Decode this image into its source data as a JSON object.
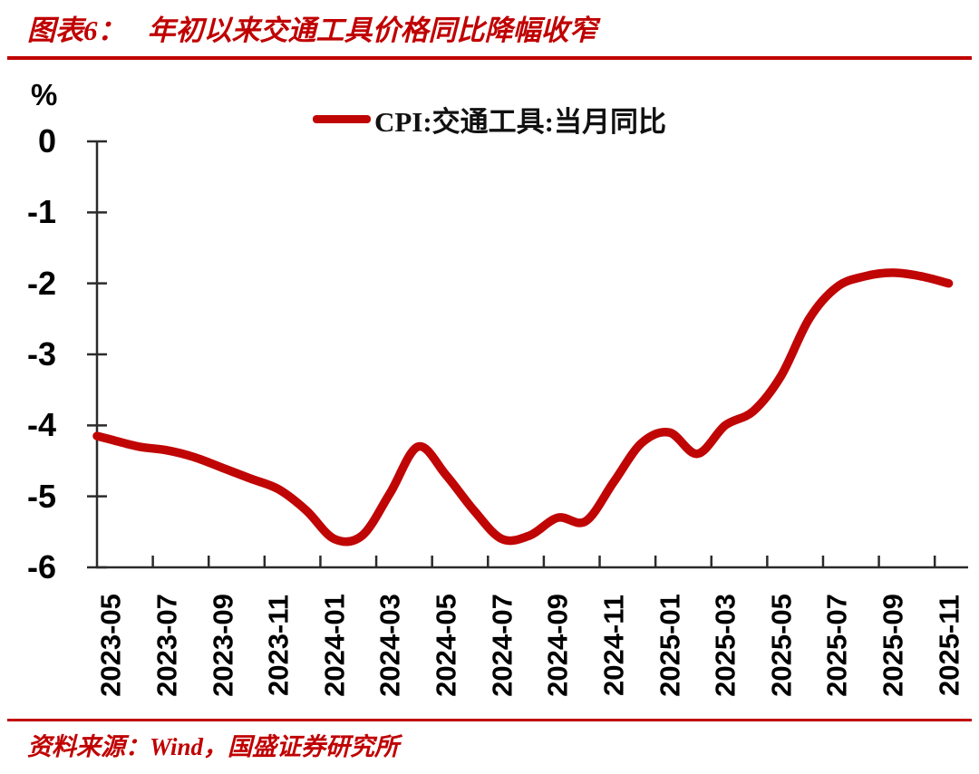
{
  "header": {
    "figure_label": "图表6：",
    "title": "年初以来交通工具价格同比降幅收窄"
  },
  "chart": {
    "unit_label": "%",
    "legend_label": "CPI:交通工具:当月同比"
  },
  "footer": {
    "source": "资料来源：Wind，国盛证券研究所"
  },
  "colors": {
    "accent": "#C00000",
    "line": "#C00505",
    "axis": "#2b2b2b",
    "label_text": "#000000"
  },
  "chart_data": {
    "type": "line",
    "title": "年初以来交通工具价格同比降幅收窄",
    "xlabel": "",
    "ylabel": "%",
    "ylim": [
      -6,
      0
    ],
    "y_ticks": [
      0,
      -1,
      -2,
      -3,
      -4,
      -5,
      -6
    ],
    "x_label_interval": 2,
    "grid": false,
    "legend_position": "top-center",
    "smooth": true,
    "x": [
      "2023-05",
      "2023-06",
      "2023-07",
      "2023-08",
      "2023-09",
      "2023-10",
      "2023-11",
      "2023-12",
      "2024-01",
      "2024-02",
      "2024-03",
      "2024-04",
      "2024-05",
      "2024-06",
      "2024-07",
      "2024-08",
      "2024-09",
      "2024-10",
      "2024-11",
      "2024-12",
      "2025-01",
      "2025-02",
      "2025-03",
      "2025-04",
      "2025-05",
      "2025-06",
      "2025-07",
      "2025-08",
      "2025-09",
      "2025-10",
      "2025-11"
    ],
    "series": [
      {
        "name": "CPI:交通工具:当月同比",
        "color": "#C00505",
        "values": [
          -4.2,
          -4.3,
          -4.35,
          -4.45,
          -4.6,
          -4.75,
          -4.9,
          -5.2,
          -5.6,
          -5.55,
          -4.95,
          -4.3,
          -4.7,
          -5.2,
          -5.6,
          -5.55,
          -5.3,
          -5.35,
          -4.8,
          -4.25,
          -4.1,
          -4.4,
          -4.0,
          -3.8,
          -3.3,
          -2.5,
          -2.05,
          -1.9,
          -1.85,
          -1.9,
          -2.0
        ]
      }
    ]
  }
}
